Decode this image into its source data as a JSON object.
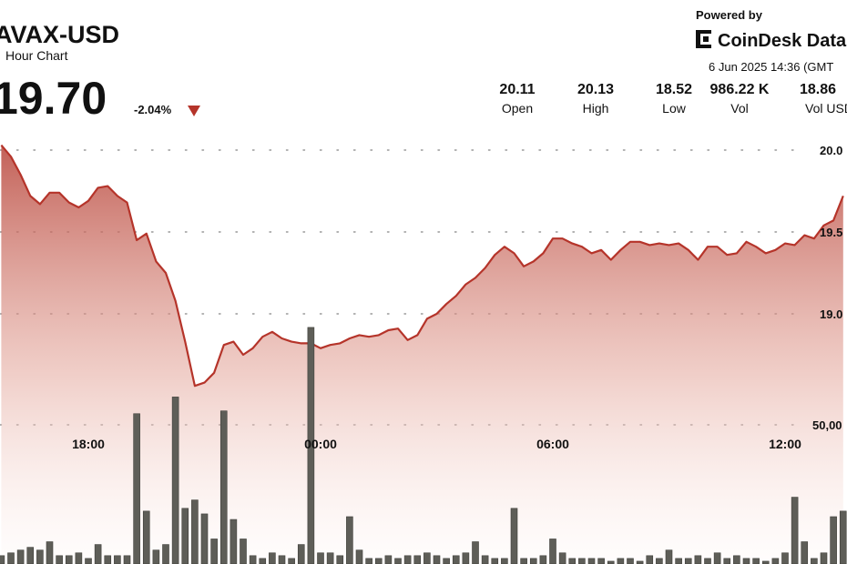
{
  "chart_data": {
    "type": "line",
    "title": "AVAX-USD",
    "subtitle": "Hour Chart",
    "price": "19.70",
    "change": "-2.04%",
    "powered_by": "Powered by",
    "brand": "CoinDesk Data",
    "timestamp": "6 Jun 2025 14:36 (GMT",
    "stats": [
      {
        "value": "20.11",
        "label": "Open"
      },
      {
        "value": "20.13",
        "label": "High"
      },
      {
        "value": "18.52",
        "label": "Low"
      },
      {
        "value": "986.22 K",
        "label": "Vol"
      },
      {
        "value": "18.86",
        "label": "Vol USD"
      }
    ],
    "xlim": [
      -0.13,
      87.4
    ],
    "xticks": [
      {
        "value": 9,
        "label": "18:00"
      },
      {
        "value": 33,
        "label": "00:00"
      },
      {
        "value": 57,
        "label": "06:00"
      },
      {
        "value": 81,
        "label": "12:00"
      }
    ],
    "ylim": [
      17.5,
      20.9
    ],
    "yticks": [
      {
        "value": 19,
        "label": "19.0"
      },
      19.5,
      {
        "value": 20,
        "label": "20.0"
      }
    ],
    "y2lim": [
      0,
      100000
    ],
    "y2ticks": [
      {
        "value": 50000,
        "label": "50,00"
      }
    ],
    "grid": true,
    "series": [
      {
        "color": "#b5342a",
        "values": [
          20.03,
          19.96,
          19.85,
          19.72,
          19.67,
          19.74,
          19.74,
          19.68,
          19.65,
          19.69,
          19.77,
          19.78,
          19.72,
          19.68,
          19.45,
          19.49,
          19.32,
          19.25,
          19.08,
          18.83,
          18.56,
          18.58,
          18.64,
          18.81,
          18.83,
          18.75,
          18.79,
          18.86,
          18.89,
          18.85,
          18.83,
          18.82,
          18.82,
          18.79,
          18.81,
          18.82,
          18.85,
          18.87,
          18.86,
          18.87,
          18.9,
          18.91,
          18.84,
          18.87,
          18.97,
          19.0,
          19.06,
          19.11,
          19.18,
          19.22,
          19.28,
          19.36,
          19.41,
          19.37,
          19.29,
          19.32,
          19.37,
          19.46,
          19.46,
          19.43,
          19.41,
          19.37,
          19.39,
          19.33,
          19.39,
          19.44,
          19.44,
          19.42,
          19.43,
          19.42,
          19.43,
          19.39,
          19.33,
          19.41,
          19.41,
          19.36,
          19.37,
          19.44,
          19.41,
          19.37,
          19.39,
          19.43,
          19.42,
          19.48,
          19.46,
          19.54,
          19.57,
          19.72
        ]
      },
      {
        "color": "#5e5e58",
        "axis": "y2",
        "type": "bar",
        "values": [
          3000,
          4000,
          5000,
          6000,
          5000,
          8000,
          3000,
          3000,
          4000,
          2000,
          7000,
          3000,
          3000,
          3000,
          54000,
          19000,
          5000,
          7000,
          60000,
          20000,
          23000,
          18000,
          9000,
          55000,
          16000,
          9000,
          3000,
          2000,
          4000,
          3000,
          2000,
          7000,
          85000,
          4000,
          4000,
          3000,
          17000,
          5000,
          2000,
          2000,
          3000,
          2000,
          3000,
          3000,
          4000,
          3000,
          2000,
          3000,
          4000,
          8000,
          3000,
          2000,
          2000,
          20000,
          2000,
          2000,
          3000,
          9000,
          4000,
          2000,
          2000,
          2000,
          2000,
          1000,
          2000,
          2000,
          1000,
          3000,
          2000,
          5000,
          2000,
          2000,
          3000,
          2000,
          4000,
          2000,
          3000,
          2000,
          2000,
          1000,
          2000,
          4000,
          24000,
          8000,
          2000,
          4000,
          17000,
          19000
        ]
      }
    ]
  }
}
